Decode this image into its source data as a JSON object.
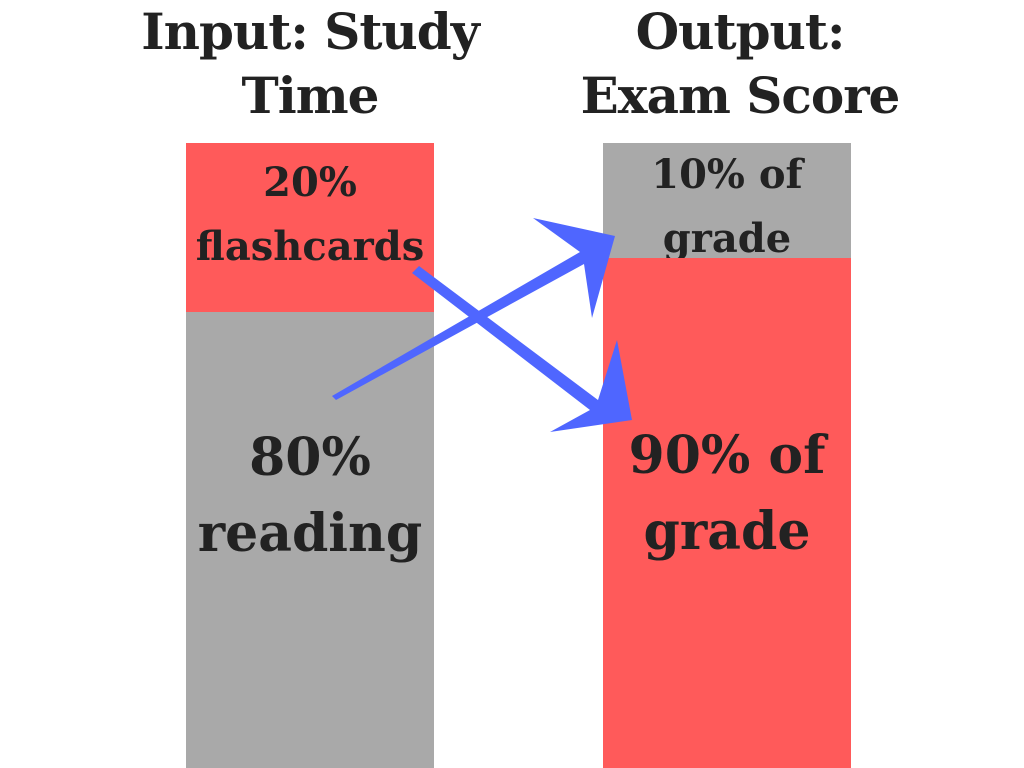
{
  "titles": {
    "input": "Input: Study\nTime",
    "output": "Output:\nExam Score"
  },
  "input_column": {
    "segments": [
      {
        "percent": "20%",
        "label": "flashcards",
        "share": 0.2,
        "color": "#ff5a5a"
      },
      {
        "percent": "80%",
        "label": "reading",
        "share": 0.8,
        "color": "#a9a9a9"
      }
    ]
  },
  "output_column": {
    "segments": [
      {
        "line1": "10% of",
        "line2": "grade",
        "share": 0.1,
        "color": "#a9a9a9"
      },
      {
        "line1": "90% of",
        "line2": "grade",
        "share": 0.9,
        "color": "#ff5a5a"
      }
    ]
  },
  "arrows": {
    "color": "#4f66ff",
    "links": [
      {
        "from": "reading",
        "to": "10% of grade"
      },
      {
        "from": "flashcards",
        "to": "90% of grade"
      }
    ]
  }
}
